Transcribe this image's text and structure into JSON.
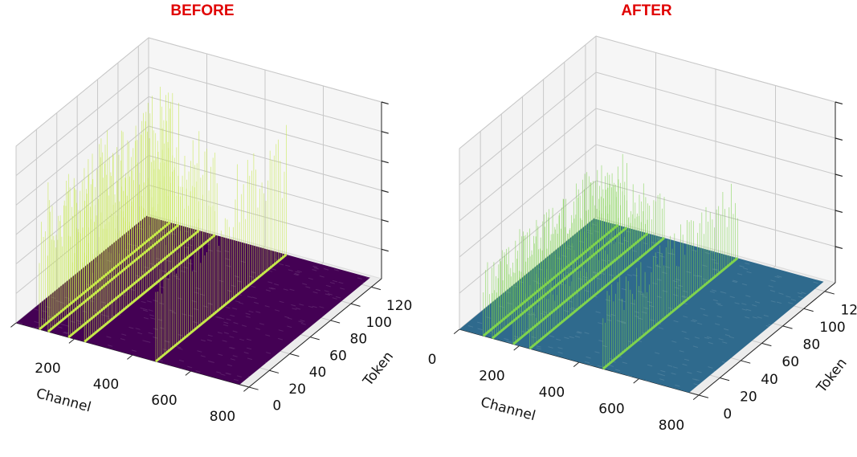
{
  "chart_data": [
    {
      "type": "surface3d",
      "title": "BEFORE",
      "xlabel": "Channel",
      "ylabel": "Token",
      "xlim": [
        0,
        800
      ],
      "xticks": [
        0,
        200,
        400,
        600,
        800
      ],
      "ylim": [
        0,
        130
      ],
      "yticks": [
        0,
        20,
        40,
        60,
        80,
        100,
        120
      ],
      "zlim": [
        0,
        12
      ],
      "zticks": [
        2,
        4,
        6,
        8,
        10,
        12
      ],
      "floor_color": "#440154",
      "spike_color": "#c5e84a",
      "spikes": {
        "channels": [
          80,
          110,
          180,
          235,
          480
        ],
        "values": [
          9,
          10.5,
          8,
          7,
          9
        ]
      }
    },
    {
      "type": "surface3d",
      "title": "AFTER",
      "xlabel": "Channel",
      "ylabel": "Token",
      "xlim": [
        0,
        800
      ],
      "xticks": [
        0,
        200,
        400,
        600,
        800
      ],
      "ylim": [
        0,
        130
      ],
      "yticks": [
        0,
        20,
        40,
        60,
        80,
        100,
        120
      ],
      "zlim": [
        0,
        10
      ],
      "zticks": [
        2,
        4,
        6,
        8,
        10
      ],
      "floor_color": "#2f6a8d",
      "spike_color": "#7fd34e",
      "spikes": {
        "channels": [
          80,
          110,
          180,
          235,
          480
        ],
        "values": [
          4,
          5,
          3.5,
          3,
          4.5
        ]
      }
    }
  ]
}
